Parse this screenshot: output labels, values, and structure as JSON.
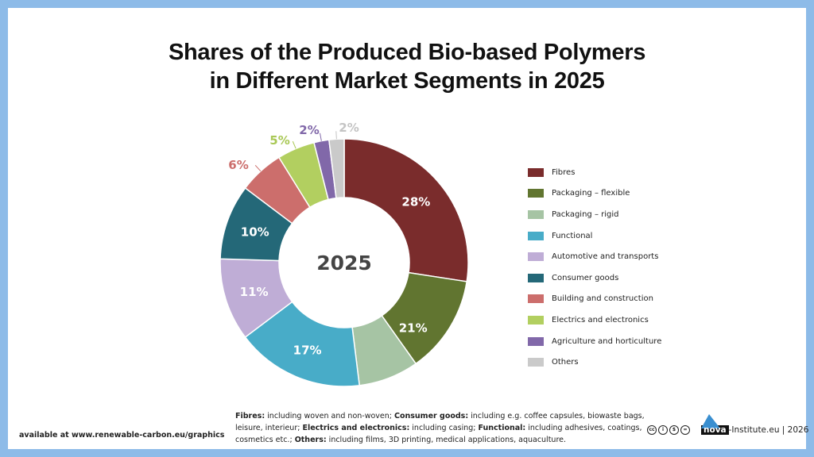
{
  "title_line1": "Shares of the Produced Bio-based Polymers",
  "title_line2": "in Different Market Segments in 2025",
  "chart_data": {
    "type": "donut",
    "center_label": "2025",
    "series": [
      {
        "name": "Fibres",
        "value": 28,
        "color": "#7a2c2c",
        "label": "28%",
        "label_color": "#ffffff"
      },
      {
        "name": "Packaging – flexible",
        "value": 13,
        "color": "#617530",
        "label": "21%",
        "label_color": "#ffffff"
      },
      {
        "name": "Packaging – rigid",
        "value": 8,
        "color": "#a6c4a4",
        "label": "",
        "label_color": "#ffffff"
      },
      {
        "name": "Functional",
        "value": 17,
        "color": "#48acc8",
        "label": "17%",
        "label_color": "#ffffff"
      },
      {
        "name": "Automotive and transports",
        "value": 11,
        "color": "#bfadd6",
        "label": "11%",
        "label_color": "#ffffff"
      },
      {
        "name": "Consumer goods",
        "value": 10,
        "color": "#246878",
        "label": "10%",
        "label_color": "#ffffff"
      },
      {
        "name": "Building and construction",
        "value": 6,
        "color": "#cc6e6c",
        "label": "6%",
        "label_color": "#cc6e6c"
      },
      {
        "name": "Electrics and electronics",
        "value": 5,
        "color": "#b2cf60",
        "label": "5%",
        "label_color": "#a9c856"
      },
      {
        "name": "Agriculture and horticulture",
        "value": 2,
        "color": "#8168a9",
        "label": "2%",
        "label_color": "#8168a9"
      },
      {
        "name": "Others",
        "value": 2,
        "color": "#cacaca",
        "label": "2%",
        "label_color": "#c4c4c4"
      }
    ],
    "legend_position": "right"
  },
  "notes": [
    {
      "term": "Fibres:",
      "text": " including woven and non-woven; "
    },
    {
      "term": "Consumer goods:",
      "text": " including e.g. coffee capsules, biowaste bags, leisure, interieur; "
    },
    {
      "term": "Electrics and electronics:",
      "text": " including casing; "
    },
    {
      "term": "Functional:",
      "text": " including adhesives, coatings, cosmetics etc.; "
    },
    {
      "term": "Others:",
      "text": " including films, 3D printing, medical applications, aquaculture."
    }
  ],
  "footer": {
    "available": "available at www.renewable-carbon.eu/graphics",
    "cc_icons": [
      "cc",
      "by",
      "nc",
      "nd"
    ],
    "brand": "nova",
    "brand_suffix": "-Institute.eu | 2026"
  }
}
